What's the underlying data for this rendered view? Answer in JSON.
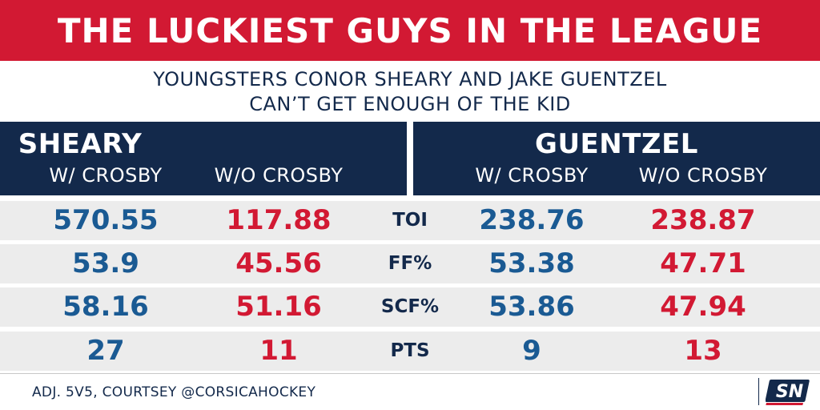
{
  "header": {
    "title": "THE LUCKIEST GUYS IN THE LEAGUE",
    "subtitle_line1": "YOUNGSTERS CONOR SHEARY AND JAKE GUENTZEL",
    "subtitle_line2": "CAN’T GET ENOUGH OF THE KID"
  },
  "players": [
    {
      "name": "SHEARY",
      "col_with": "W/ CROSBY",
      "col_without": "W/O CROSBY"
    },
    {
      "name": "GUENTZEL",
      "col_with": "W/ CROSBY",
      "col_without": "W/O CROSBY"
    }
  ],
  "rows": [
    {
      "metric": "TOI",
      "sheary_with": "570.55",
      "sheary_without": "117.88",
      "guentzel_with": "238.76",
      "guentzel_without": "238.87"
    },
    {
      "metric": "FF%",
      "sheary_with": "53.9",
      "sheary_without": "45.56",
      "guentzel_with": "53.38",
      "guentzel_without": "47.71"
    },
    {
      "metric": "SCF%",
      "sheary_with": "58.16",
      "sheary_without": "51.16",
      "guentzel_with": "53.86",
      "guentzel_without": "47.94"
    },
    {
      "metric": "PTS",
      "sheary_with": "27",
      "sheary_without": "11",
      "guentzel_with": "9",
      "guentzel_without": "13"
    }
  ],
  "footer": {
    "source": "ADJ. 5V5, COURTSEY @CORSICAHOCKEY",
    "logo_text": "SN"
  },
  "colors": {
    "red": "#d21933",
    "navy": "#13294b",
    "blue": "#1a5a93",
    "row_bg": "#ececec"
  },
  "chart_data": {
    "type": "table",
    "title": "THE LUCKIEST GUYS IN THE LEAGUE",
    "subtitle": "YOUNGSTERS CONOR SHEARY AND JAKE GUENTZEL CAN’T GET ENOUGH OF THE KID",
    "columns": [
      "SHEARY W/ CROSBY",
      "SHEARY W/O CROSBY",
      "",
      "GUENTZEL W/ CROSBY",
      "GUENTZEL W/O CROSBY"
    ],
    "metrics": [
      "TOI",
      "FF%",
      "SCF%",
      "PTS"
    ],
    "series": [
      {
        "name": "SHEARY W/ CROSBY",
        "values": [
          570.55,
          53.9,
          58.16,
          27
        ]
      },
      {
        "name": "SHEARY W/O CROSBY",
        "values": [
          117.88,
          45.56,
          51.16,
          11
        ]
      },
      {
        "name": "GUENTZEL W/ CROSBY",
        "values": [
          238.76,
          53.38,
          53.86,
          9
        ]
      },
      {
        "name": "GUENTZEL W/O CROSBY",
        "values": [
          238.87,
          47.71,
          47.94,
          13
        ]
      }
    ]
  }
}
